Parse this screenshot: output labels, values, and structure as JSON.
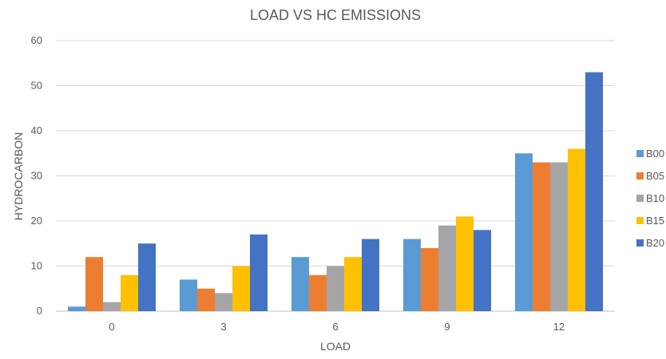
{
  "chart_data": {
    "type": "bar",
    "title": "LOAD VS HC EMISSIONS",
    "xlabel": "LOAD",
    "ylabel": "HYDROCARBON",
    "categories": [
      "0",
      "3",
      "6",
      "9",
      "12"
    ],
    "ylim": [
      0,
      60
    ],
    "yticks": [
      0,
      10,
      20,
      30,
      40,
      50,
      60
    ],
    "grid": true,
    "legend": "right",
    "series": [
      {
        "name": "B00",
        "color": "#5b9bd5",
        "values": [
          1,
          7,
          12,
          16,
          35
        ]
      },
      {
        "name": "B05",
        "color": "#ed7d31",
        "values": [
          12,
          5,
          8,
          14,
          33
        ]
      },
      {
        "name": "B10",
        "color": "#a5a5a5",
        "values": [
          2,
          4,
          10,
          19,
          33
        ]
      },
      {
        "name": "B15",
        "color": "#ffc000",
        "values": [
          8,
          10,
          12,
          21,
          36
        ]
      },
      {
        "name": "B20",
        "color": "#4472c4",
        "values": [
          15,
          17,
          16,
          18,
          53
        ]
      }
    ]
  }
}
